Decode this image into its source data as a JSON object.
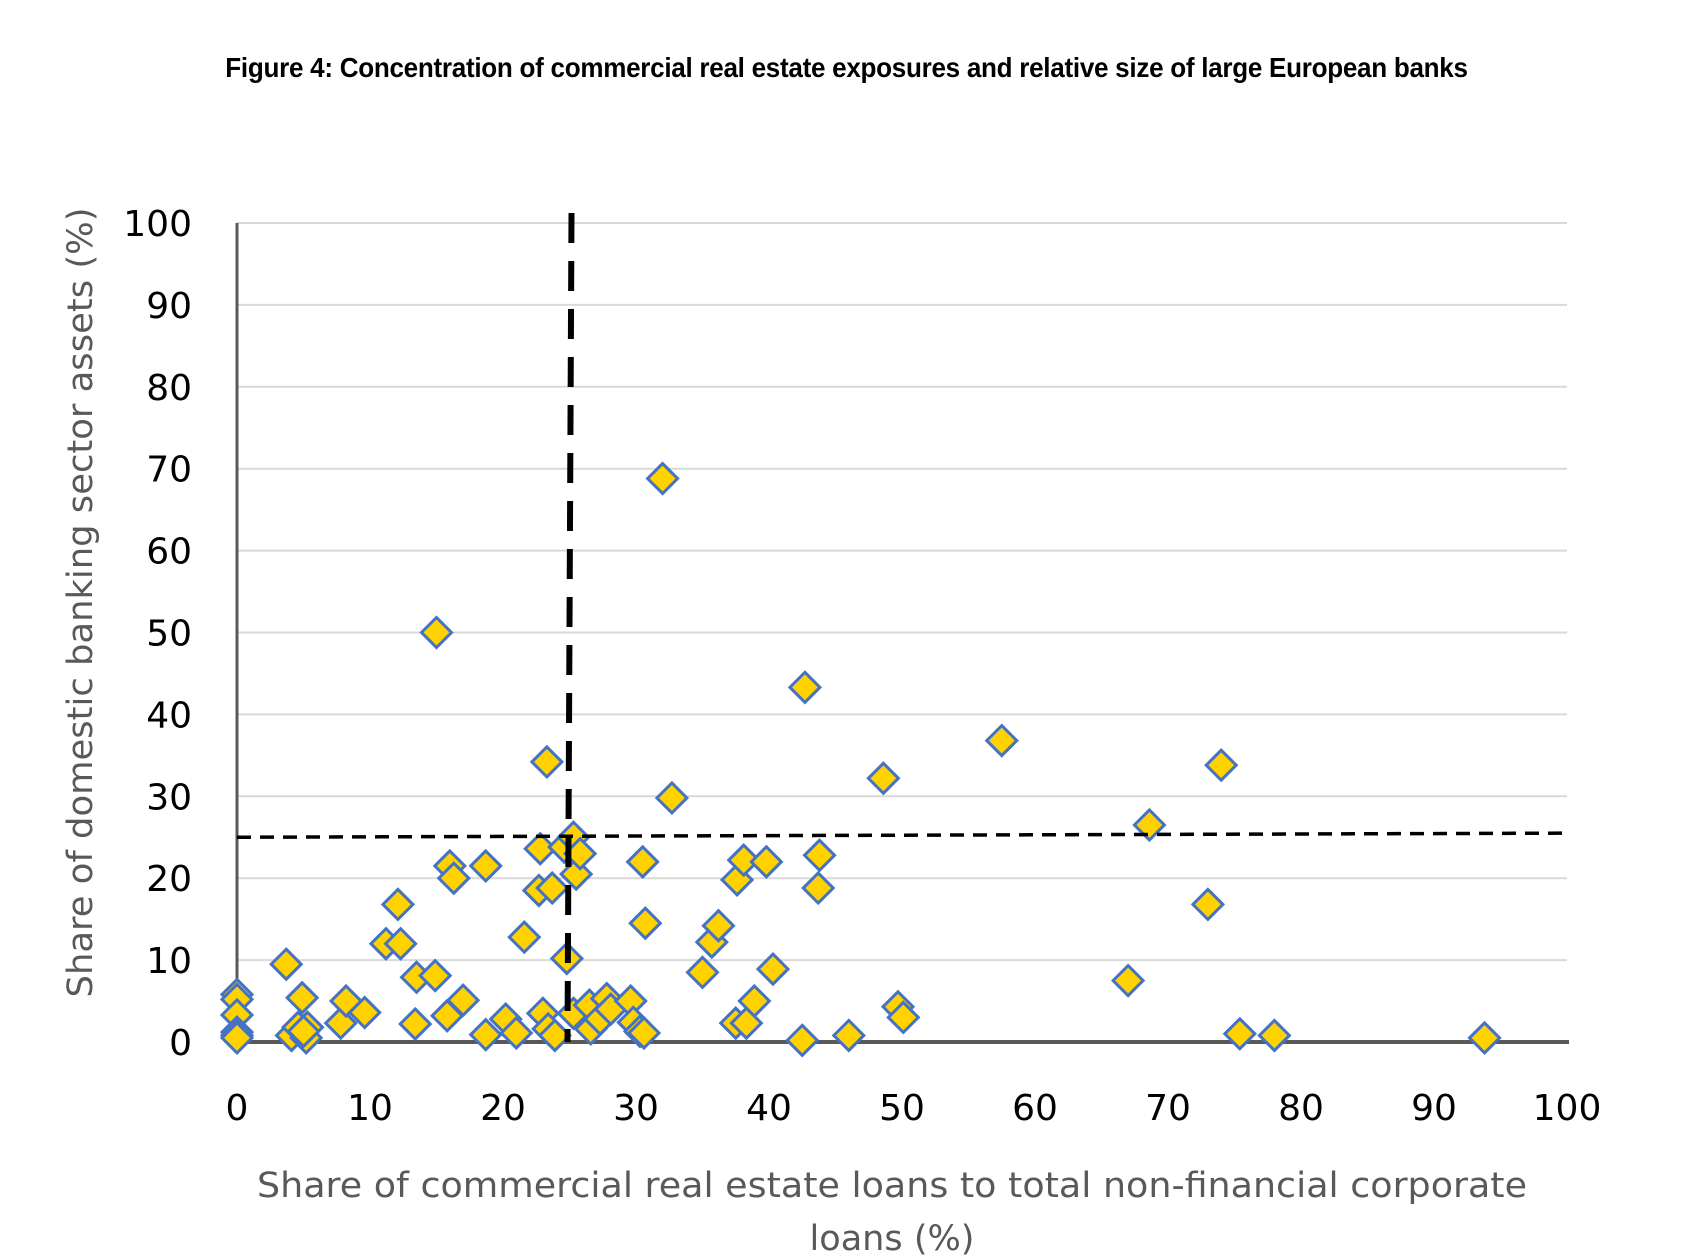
{
  "chart_data": {
    "type": "scatter",
    "title": "Figure 4: Concentration of commercial real estate exposures and relative size of large European banks",
    "xlabel_lines": [
      "Share of commercial real estate loans to total non-financial corporate",
      "loans (%)"
    ],
    "ylabel": "Share of domestic banking sector assets (%)",
    "xlim": [
      0,
      100
    ],
    "ylim": [
      0,
      100
    ],
    "x_ticks": [
      "0",
      "10",
      "20",
      "30",
      "40",
      "50",
      "60",
      "70",
      "80",
      "90",
      "100"
    ],
    "y_ticks": [
      "0",
      "10",
      "20",
      "30",
      "40",
      "50",
      "60",
      "70",
      "80",
      "90",
      "100"
    ],
    "grid": "horizontal",
    "legend": "none",
    "marker": {
      "shape": "diamond",
      "fill": "#FFD200",
      "stroke": "#4472C4"
    },
    "reference_lines": [
      {
        "orientation": "vertical",
        "value": 25,
        "style": "dashed-thick",
        "color": "#000000"
      },
      {
        "orientation": "horizontal",
        "value": 25,
        "value_end": 25.5,
        "style": "dashed",
        "color": "#000000"
      }
    ],
    "series": [
      {
        "name": "Large European banks",
        "points": [
          [
            0,
            5.8
          ],
          [
            0,
            5.2
          ],
          [
            0,
            3.3
          ],
          [
            0,
            1.2
          ],
          [
            0,
            0.8
          ],
          [
            0,
            0.5
          ],
          [
            3.7,
            9.5
          ],
          [
            4.1,
            0.8
          ],
          [
            4.6,
            1.8
          ],
          [
            4.9,
            5.4
          ],
          [
            5.2,
            0.5
          ],
          [
            5.3,
            1.8
          ],
          [
            5.0,
            1.3
          ],
          [
            7.8,
            2.3
          ],
          [
            8.2,
            5.0
          ],
          [
            9.6,
            3.6
          ],
          [
            11.2,
            12.0
          ],
          [
            12.1,
            16.8
          ],
          [
            12.3,
            12.0
          ],
          [
            13.4,
            2.2
          ],
          [
            13.5,
            7.9
          ],
          [
            14.9,
            8.1
          ],
          [
            15.0,
            50.0
          ],
          [
            15.8,
            3.2
          ],
          [
            16.0,
            21.5
          ],
          [
            16.3,
            20.0
          ],
          [
            17.0,
            5.1
          ],
          [
            18.7,
            21.5
          ],
          [
            18.7,
            0.9
          ],
          [
            20.2,
            2.8
          ],
          [
            21.0,
            1.1
          ],
          [
            21.6,
            12.8
          ],
          [
            22.7,
            18.5
          ],
          [
            22.8,
            23.6
          ],
          [
            23.0,
            3.5
          ],
          [
            23.3,
            34.2
          ],
          [
            23.4,
            1.6
          ],
          [
            23.7,
            18.8
          ],
          [
            23.9,
            0.8
          ],
          [
            24.6,
            23.8
          ],
          [
            24.8,
            10.2
          ],
          [
            25.3,
            25.0
          ],
          [
            25.5,
            20.5
          ],
          [
            25.8,
            23.0
          ],
          [
            25.3,
            3.5
          ],
          [
            26.5,
            4.5
          ],
          [
            26.6,
            1.6
          ],
          [
            27.3,
            2.8
          ],
          [
            27.8,
            5.3
          ],
          [
            28.1,
            4.0
          ],
          [
            29.6,
            5.0
          ],
          [
            29.8,
            2.4
          ],
          [
            30.3,
            1.3
          ],
          [
            30.6,
            1.1
          ],
          [
            30.5,
            22.0
          ],
          [
            30.7,
            14.5
          ],
          [
            32.0,
            68.8
          ],
          [
            32.7,
            29.8
          ],
          [
            35.0,
            8.5
          ],
          [
            35.7,
            12.2
          ],
          [
            36.2,
            14.2
          ],
          [
            37.5,
            2.3
          ],
          [
            37.6,
            19.8
          ],
          [
            38.1,
            22.2
          ],
          [
            38.3,
            2.3
          ],
          [
            38.9,
            5.0
          ],
          [
            39.8,
            22.0
          ],
          [
            40.3,
            8.9
          ],
          [
            42.5,
            0.2
          ],
          [
            42.7,
            43.3
          ],
          [
            43.8,
            22.8
          ],
          [
            43.7,
            18.8
          ],
          [
            46.0,
            0.8
          ],
          [
            48.6,
            32.2
          ],
          [
            49.7,
            4.3
          ],
          [
            50.1,
            3.0
          ],
          [
            57.5,
            36.8
          ],
          [
            67.0,
            7.5
          ],
          [
            68.6,
            26.5
          ],
          [
            73.0,
            16.8
          ],
          [
            74.0,
            33.8
          ],
          [
            75.4,
            1.0
          ],
          [
            78.0,
            0.8
          ],
          [
            93.8,
            0.5
          ]
        ]
      }
    ]
  }
}
